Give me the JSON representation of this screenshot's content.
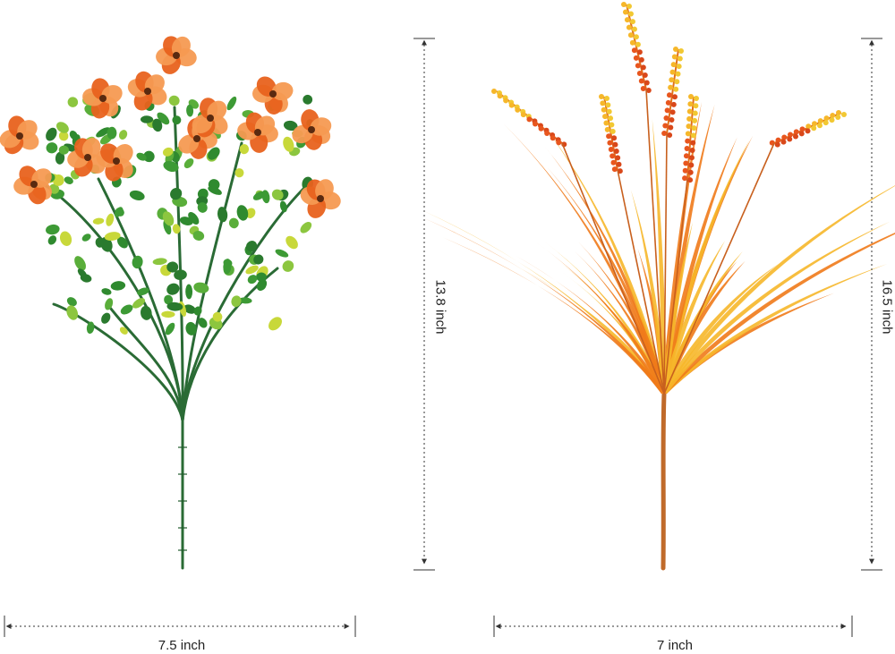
{
  "product_photo": {
    "left_plant": {
      "kind": "orange-flower-eucalyptus-bush",
      "width_label": "7.5 inch",
      "height_label": "13.8 inch"
    },
    "right_plant": {
      "kind": "orange-grass-bush",
      "width_label": "7 inch",
      "height_label": "16.5 inch"
    },
    "colors": {
      "flower_orange": "#e8621e",
      "flower_light": "#f59a52",
      "leaf_green": "#2f8a2f",
      "leaf_yellow": "#c8d83a",
      "stem_green": "#2a6b35",
      "grass_orange": "#f07a1a",
      "grass_yellow": "#f6b72a",
      "stem_brown": "#c06a2a",
      "dim_line": "#333333"
    }
  }
}
